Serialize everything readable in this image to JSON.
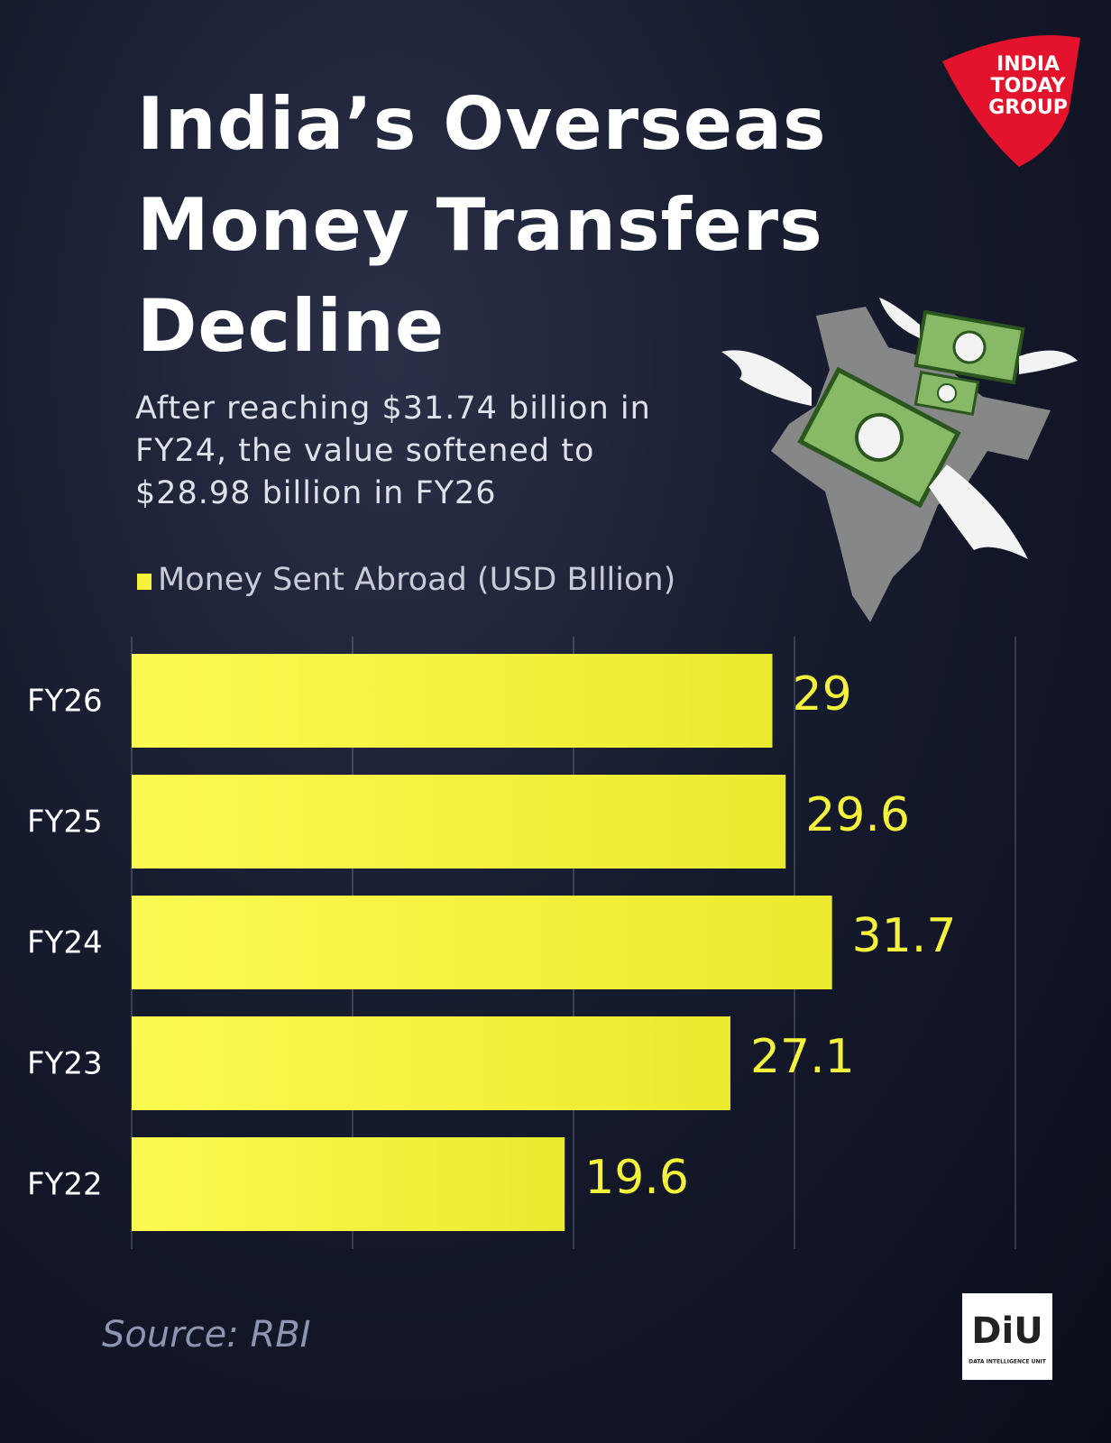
{
  "title": "India’s Overseas Money Transfers Decline",
  "subtitle": "After reaching $31.74 billion in FY24, the value softened to $28.98 billion in FY26",
  "source": "Source: RBI",
  "logo": {
    "lines": [
      "INDIA",
      "TODAY",
      "GROUP"
    ]
  },
  "badge": {
    "name": "DiU",
    "full": "DATA INTELLIGENCE UNIT"
  },
  "chart_data": {
    "type": "hbar",
    "categories": [
      "FY26",
      "FY25",
      "FY24",
      "FY23",
      "FY22"
    ],
    "series": [
      {
        "name": "Money Sent Abroad (USD BIllion)",
        "color": "#f5f23c",
        "values": [
          29,
          29.6,
          31.7,
          27.1,
          19.6
        ]
      }
    ],
    "xlim": [
      0,
      40
    ],
    "xticks": [
      0,
      10,
      20,
      30,
      40
    ],
    "grid": true
  }
}
